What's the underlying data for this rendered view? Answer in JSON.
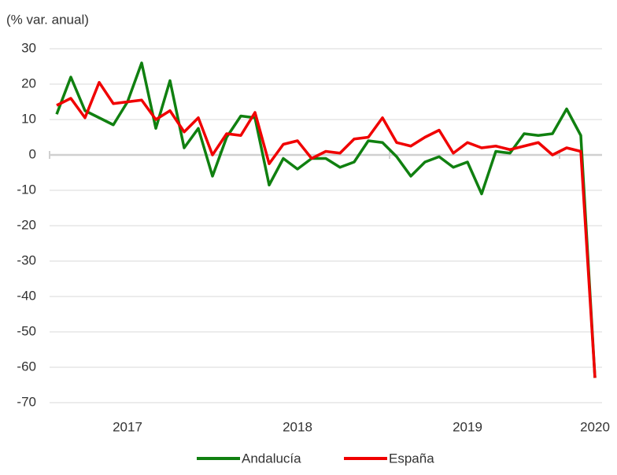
{
  "chart_data": {
    "type": "line",
    "y_axis_label": "(% var. anual)",
    "categories": [
      null,
      null,
      null,
      null,
      null,
      "2017",
      null,
      null,
      null,
      null,
      null,
      null,
      null,
      null,
      null,
      null,
      null,
      "2018",
      null,
      null,
      null,
      null,
      null,
      null,
      null,
      null,
      null,
      null,
      null,
      "2019",
      null,
      null,
      null,
      null,
      null,
      null,
      null,
      null,
      "2020"
    ],
    "series": [
      {
        "name": "Andalucía",
        "color": "#108010",
        "values": [
          11.5,
          22,
          12.5,
          10.5,
          8.5,
          15,
          26,
          7.5,
          21,
          2,
          7.5,
          -6,
          5,
          11,
          10.5,
          -8.5,
          -1,
          -4,
          -1,
          -1,
          -3.5,
          -2,
          4,
          3.5,
          -0.5,
          -6,
          -2,
          -0.5,
          -3.5,
          -2,
          -11,
          1,
          0.5,
          6,
          5.5,
          6,
          13,
          5.5,
          -63
        ]
      },
      {
        "name": "España",
        "color": "#f00000",
        "values": [
          14,
          16,
          10.5,
          20.5,
          14.5,
          15,
          15.5,
          10,
          12.5,
          6.5,
          10.5,
          0,
          6,
          5.5,
          12,
          -2.5,
          3,
          4,
          -1,
          1,
          0.5,
          4.5,
          5,
          10.5,
          3.5,
          2.5,
          5,
          7,
          0.5,
          3.5,
          2,
          2.5,
          1.5,
          2.5,
          3.5,
          0,
          2,
          1,
          -63
        ]
      }
    ],
    "ylim": [
      -70,
      30
    ],
    "yticks": [
      -70,
      -60,
      -50,
      -40,
      -30,
      -20,
      -10,
      0,
      10,
      20,
      30
    ],
    "grid": true
  }
}
